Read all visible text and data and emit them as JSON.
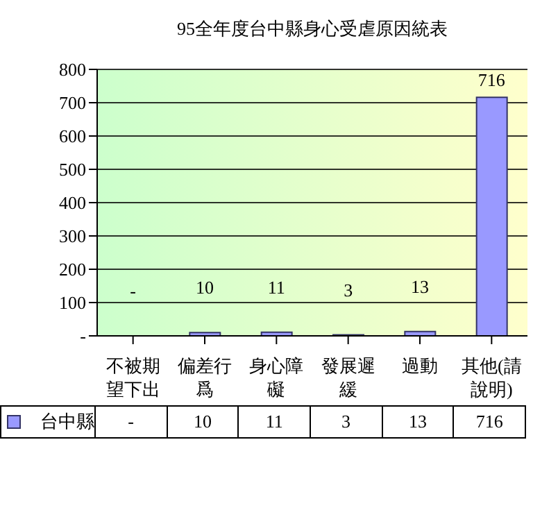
{
  "chart_data": {
    "type": "bar",
    "title": "95全年度台中縣身心受虐原因統表",
    "categories": [
      "不被期望下出",
      "偏差行爲",
      "身心障礙",
      "發展遲緩",
      "過動",
      "其他(請說明)"
    ],
    "series": [
      {
        "name": "台中縣",
        "color": "#9999ff",
        "values": [
          0,
          10,
          11,
          3,
          13,
          716
        ],
        "value_labels": [
          "-",
          "10",
          "11",
          "3",
          "13",
          "716"
        ]
      }
    ],
    "ylim": [
      0,
      800
    ],
    "yticks": [
      {
        "value": 0,
        "label": "-"
      },
      100,
      200,
      300,
      400,
      500,
      600,
      700,
      800
    ],
    "grid": "y",
    "legend": "bottom"
  }
}
